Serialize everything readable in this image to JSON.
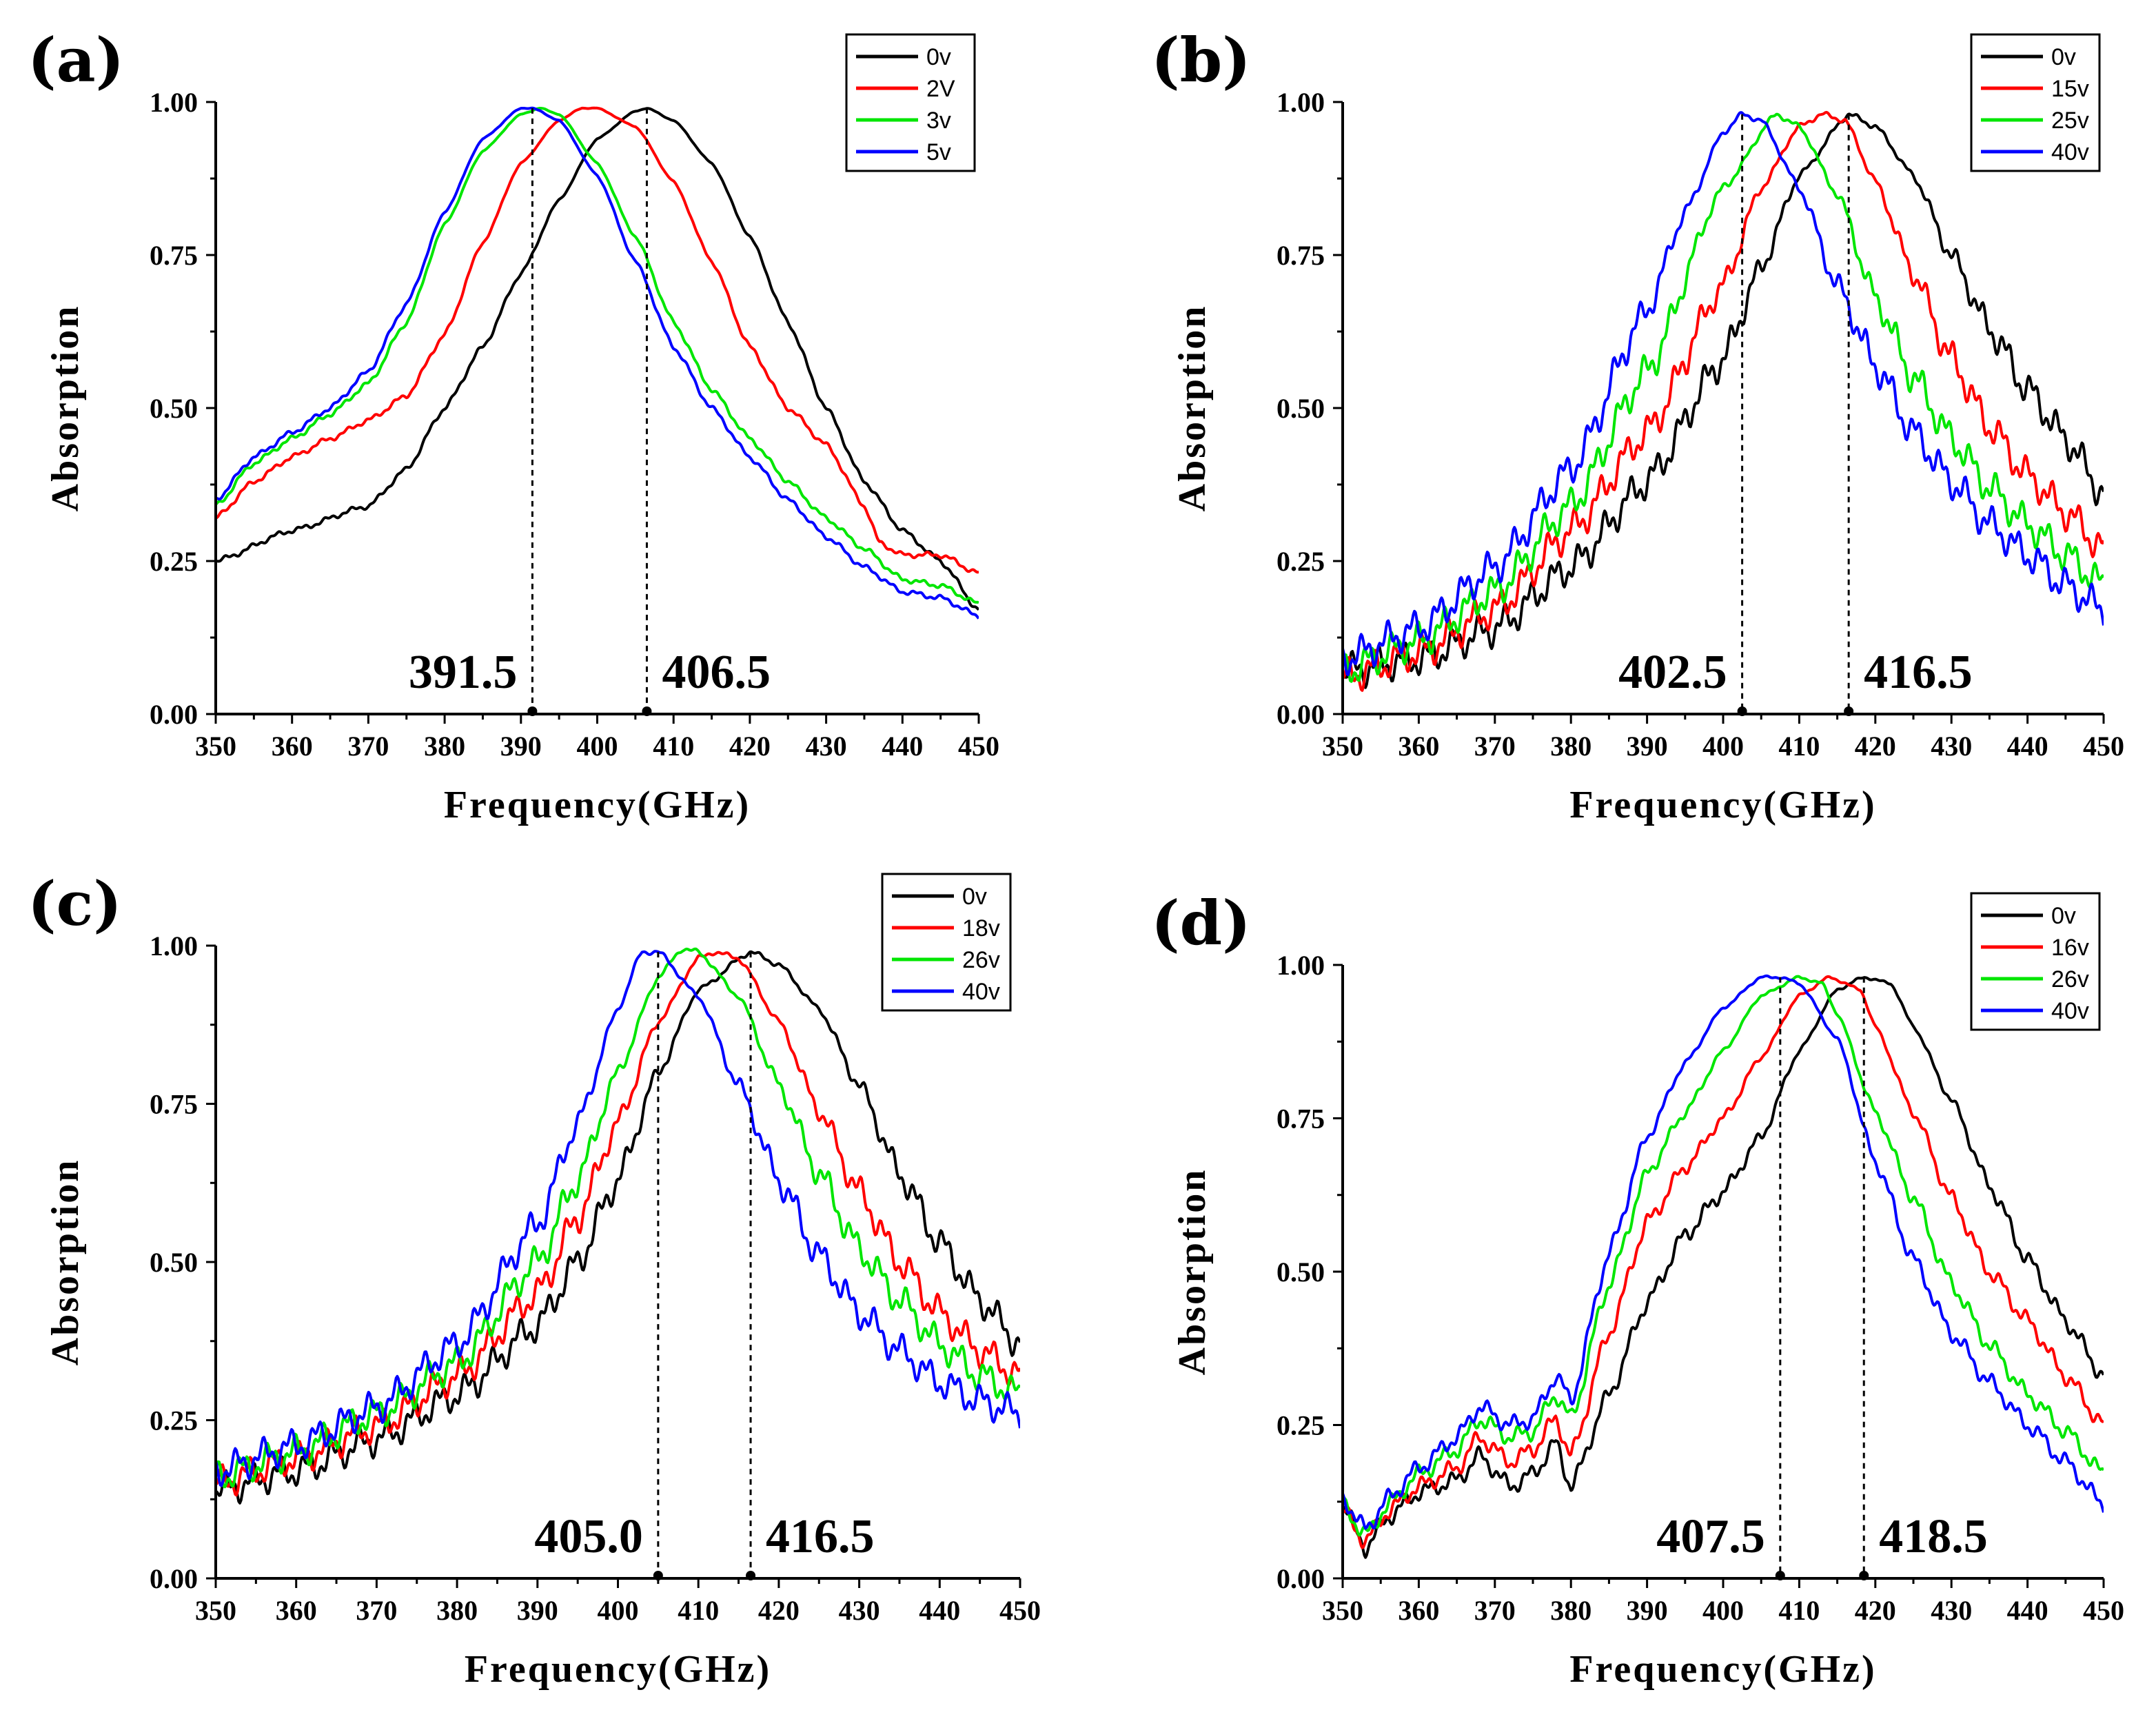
{
  "colors": {
    "series": [
      "#000000",
      "#ff0000",
      "#00e600",
      "#0000ff"
    ],
    "axis": "#000000"
  },
  "chart_data": [
    {
      "type": "line",
      "panel": "(a)",
      "xlabel": "Frequency(GHz)",
      "ylabel": "Absorption",
      "xlim": [
        350,
        450
      ],
      "ylim": [
        0,
        1
      ],
      "xticks": [
        "350",
        "360",
        "370",
        "380",
        "390",
        "400",
        "410",
        "420",
        "430",
        "440",
        "450"
      ],
      "yticks": [
        "0.00",
        "0.25",
        "0.50",
        "0.75",
        "1.00"
      ],
      "noise": 0.003,
      "series": [
        {
          "name": "0v",
          "x": [
            350,
            360,
            370,
            375,
            380,
            385,
            390,
            395,
            400,
            405,
            406.5,
            410,
            415,
            420,
            425,
            430,
            435,
            440,
            445,
            450
          ],
          "values": [
            0.25,
            0.3,
            0.34,
            0.4,
            0.5,
            0.6,
            0.72,
            0.84,
            0.94,
            0.985,
            0.99,
            0.97,
            0.9,
            0.78,
            0.64,
            0.5,
            0.38,
            0.3,
            0.25,
            0.17
          ]
        },
        {
          "name": "2V",
          "x": [
            350,
            355,
            360,
            365,
            370,
            375,
            380,
            385,
            390,
            395,
            398,
            400,
            405,
            410,
            415,
            420,
            425,
            430,
            435,
            437,
            440,
            445,
            450
          ],
          "values": [
            0.32,
            0.38,
            0.42,
            0.45,
            0.48,
            0.52,
            0.62,
            0.77,
            0.9,
            0.97,
            0.99,
            0.99,
            0.96,
            0.87,
            0.74,
            0.6,
            0.5,
            0.44,
            0.34,
            0.28,
            0.26,
            0.26,
            0.23
          ]
        },
        {
          "name": "3v",
          "x": [
            350,
            355,
            360,
            365,
            370,
            375,
            380,
            385,
            390,
            392.5,
            395,
            400,
            405,
            410,
            415,
            420,
            425,
            430,
            435,
            440,
            445,
            450
          ],
          "values": [
            0.34,
            0.41,
            0.45,
            0.49,
            0.54,
            0.64,
            0.8,
            0.92,
            0.98,
            0.99,
            0.98,
            0.9,
            0.78,
            0.64,
            0.53,
            0.45,
            0.38,
            0.32,
            0.27,
            0.22,
            0.21,
            0.18
          ]
        },
        {
          "name": "5v",
          "x": [
            350,
            355,
            360,
            365,
            370,
            375,
            380,
            385,
            390,
            391.5,
            395,
            400,
            405,
            410,
            415,
            420,
            425,
            430,
            435,
            440,
            445,
            450
          ],
          "values": [
            0.35,
            0.42,
            0.46,
            0.5,
            0.56,
            0.67,
            0.82,
            0.94,
            0.99,
            0.99,
            0.97,
            0.88,
            0.74,
            0.6,
            0.5,
            0.42,
            0.35,
            0.29,
            0.24,
            0.2,
            0.19,
            0.16
          ]
        }
      ],
      "markers": [
        {
          "label": "391.5",
          "x": 391.5,
          "y": 0.99,
          "side": "left"
        },
        {
          "label": "406.5",
          "x": 406.5,
          "y": 0.99,
          "side": "right"
        }
      ]
    },
    {
      "type": "line",
      "panel": "(b)",
      "xlabel": "Frequency(GHz)",
      "ylabel": "Absorption",
      "xlim": [
        350,
        450
      ],
      "ylim": [
        0,
        1
      ],
      "xticks": [
        "350",
        "360",
        "370",
        "380",
        "390",
        "400",
        "410",
        "420",
        "430",
        "440",
        "450"
      ],
      "yticks": [
        "0.00",
        "0.25",
        "0.50",
        "0.75",
        "1.00"
      ],
      "noise": 0.02,
      "series": [
        {
          "name": "0v",
          "x": [
            350,
            360,
            370,
            380,
            390,
            400,
            405,
            410,
            416.5,
            420,
            425,
            430,
            435,
            440,
            445,
            450
          ],
          "values": [
            0.07,
            0.09,
            0.14,
            0.24,
            0.38,
            0.58,
            0.73,
            0.88,
            0.98,
            0.96,
            0.88,
            0.75,
            0.63,
            0.53,
            0.45,
            0.36
          ]
        },
        {
          "name": "15v",
          "x": [
            350,
            360,
            370,
            380,
            390,
            400,
            405,
            410,
            413,
            416,
            420,
            425,
            430,
            435,
            440,
            445,
            450
          ],
          "values": [
            0.06,
            0.1,
            0.17,
            0.3,
            0.46,
            0.7,
            0.86,
            0.96,
            0.98,
            0.97,
            0.87,
            0.72,
            0.58,
            0.47,
            0.39,
            0.33,
            0.27
          ]
        },
        {
          "name": "25v",
          "x": [
            350,
            360,
            370,
            380,
            390,
            400,
            407,
            410,
            415,
            420,
            425,
            430,
            435,
            440,
            445,
            450
          ],
          "values": [
            0.07,
            0.12,
            0.2,
            0.34,
            0.56,
            0.86,
            0.98,
            0.96,
            0.85,
            0.68,
            0.55,
            0.45,
            0.37,
            0.31,
            0.26,
            0.21
          ]
        },
        {
          "name": "40v",
          "x": [
            350,
            360,
            370,
            380,
            390,
            395,
            400,
            402.5,
            405,
            410,
            415,
            420,
            425,
            430,
            435,
            440,
            445,
            450
          ],
          "values": [
            0.09,
            0.14,
            0.24,
            0.4,
            0.66,
            0.82,
            0.95,
            0.98,
            0.97,
            0.86,
            0.7,
            0.57,
            0.46,
            0.38,
            0.31,
            0.26,
            0.21,
            0.17
          ]
        }
      ],
      "markers": [
        {
          "label": "402.5",
          "x": 402.5,
          "y": 0.98,
          "side": "left"
        },
        {
          "label": "416.5",
          "x": 416.5,
          "y": 0.98,
          "side": "right"
        }
      ]
    },
    {
      "type": "line",
      "panel": "(c)",
      "xlabel": "Frequency(GHz)",
      "ylabel": "Absorption",
      "xlim": [
        350,
        450
      ],
      "ylim": [
        0,
        1
      ],
      "xticks": [
        "350",
        "360",
        "370",
        "380",
        "390",
        "400",
        "410",
        "420",
        "430",
        "440",
        "450"
      ],
      "yticks": [
        "0.00",
        "0.25",
        "0.50",
        "0.75",
        "1.00"
      ],
      "noise": 0.018,
      "series": [
        {
          "name": "0v",
          "x": [
            350,
            360,
            370,
            380,
            390,
            395,
            400,
            405,
            410,
            416.5,
            420,
            425,
            430,
            435,
            440,
            445,
            450
          ],
          "values": [
            0.14,
            0.17,
            0.22,
            0.29,
            0.4,
            0.5,
            0.63,
            0.8,
            0.93,
            0.99,
            0.97,
            0.9,
            0.78,
            0.64,
            0.53,
            0.44,
            0.37
          ]
        },
        {
          "name": "18v",
          "x": [
            350,
            360,
            370,
            380,
            390,
            395,
            400,
            405,
            410,
            412,
            415,
            420,
            425,
            430,
            435,
            440,
            445,
            450
          ],
          "values": [
            0.15,
            0.19,
            0.24,
            0.32,
            0.45,
            0.57,
            0.72,
            0.88,
            0.98,
            0.99,
            0.98,
            0.88,
            0.74,
            0.61,
            0.5,
            0.42,
            0.36,
            0.32
          ]
        },
        {
          "name": "26v",
          "x": [
            350,
            360,
            370,
            380,
            390,
            395,
            400,
            405,
            408,
            410,
            415,
            420,
            425,
            430,
            435,
            440,
            445,
            450
          ],
          "values": [
            0.16,
            0.2,
            0.26,
            0.34,
            0.5,
            0.63,
            0.8,
            0.95,
            0.995,
            0.99,
            0.92,
            0.78,
            0.64,
            0.52,
            0.44,
            0.37,
            0.32,
            0.29
          ]
        },
        {
          "name": "40v",
          "x": [
            350,
            360,
            370,
            380,
            390,
            395,
            400,
            403,
            405,
            410,
            415,
            420,
            425,
            430,
            435,
            440,
            445,
            450
          ],
          "values": [
            0.17,
            0.21,
            0.27,
            0.37,
            0.56,
            0.72,
            0.9,
            0.99,
            0.99,
            0.92,
            0.78,
            0.63,
            0.51,
            0.42,
            0.36,
            0.31,
            0.28,
            0.26
          ]
        }
      ],
      "markers": [
        {
          "label": "405.0",
          "x": 405.0,
          "y": 0.99,
          "side": "left"
        },
        {
          "label": "416.5",
          "x": 416.5,
          "y": 0.99,
          "side": "right"
        }
      ]
    },
    {
      "type": "line",
      "panel": "(d)",
      "xlabel": "Frequency(GHz)",
      "ylabel": "Absorption",
      "xlim": [
        350,
        450
      ],
      "ylim": [
        0,
        1
      ],
      "xticks": [
        "350",
        "360",
        "370",
        "380",
        "390",
        "400",
        "410",
        "420",
        "430",
        "440",
        "450"
      ],
      "yticks": [
        "0.00",
        "0.25",
        "0.50",
        "0.75",
        "1.00"
      ],
      "noise": 0.01,
      "series": [
        {
          "name": "0v",
          "x": [
            350,
            353,
            356,
            360,
            365,
            368,
            372,
            375,
            378,
            380,
            385,
            390,
            395,
            400,
            405,
            410,
            415,
            418.5,
            422,
            425,
            430,
            435,
            440,
            445,
            450
          ],
          "values": [
            0.12,
            0.05,
            0.1,
            0.14,
            0.16,
            0.2,
            0.15,
            0.17,
            0.22,
            0.15,
            0.3,
            0.45,
            0.56,
            0.63,
            0.72,
            0.86,
            0.96,
            0.98,
            0.97,
            0.9,
            0.78,
            0.64,
            0.52,
            0.42,
            0.33
          ]
        },
        {
          "name": "16v",
          "x": [
            350,
            353,
            356,
            360,
            365,
            368,
            372,
            375,
            378,
            380,
            385,
            390,
            395,
            400,
            405,
            410,
            414,
            418,
            420,
            425,
            430,
            435,
            440,
            445,
            450
          ],
          "values": [
            0.11,
            0.06,
            0.11,
            0.15,
            0.18,
            0.23,
            0.19,
            0.21,
            0.26,
            0.2,
            0.4,
            0.58,
            0.67,
            0.75,
            0.85,
            0.95,
            0.98,
            0.96,
            0.9,
            0.76,
            0.62,
            0.5,
            0.42,
            0.33,
            0.25
          ]
        },
        {
          "name": "26v",
          "x": [
            350,
            353,
            356,
            360,
            365,
            368,
            372,
            375,
            378,
            380,
            385,
            390,
            395,
            400,
            405,
            410,
            413,
            415,
            420,
            425,
            430,
            435,
            440,
            445,
            450
          ],
          "values": [
            0.12,
            0.07,
            0.12,
            0.17,
            0.21,
            0.26,
            0.23,
            0.24,
            0.3,
            0.26,
            0.48,
            0.66,
            0.76,
            0.86,
            0.95,
            0.98,
            0.97,
            0.92,
            0.76,
            0.62,
            0.48,
            0.38,
            0.3,
            0.24,
            0.17
          ]
        },
        {
          "name": "40v",
          "x": [
            350,
            353,
            356,
            360,
            365,
            368,
            372,
            375,
            378,
            380,
            385,
            390,
            395,
            400,
            405,
            407.5,
            410,
            415,
            420,
            425,
            430,
            435,
            440,
            445,
            450
          ],
          "values": [
            0.13,
            0.08,
            0.13,
            0.18,
            0.23,
            0.28,
            0.25,
            0.26,
            0.33,
            0.29,
            0.53,
            0.72,
            0.84,
            0.93,
            0.98,
            0.98,
            0.97,
            0.88,
            0.68,
            0.52,
            0.4,
            0.32,
            0.25,
            0.19,
            0.12
          ]
        }
      ],
      "markers": [
        {
          "label": "407.5",
          "x": 407.5,
          "y": 0.98,
          "side": "left"
        },
        {
          "label": "418.5",
          "x": 418.5,
          "y": 0.98,
          "side": "right"
        }
      ]
    }
  ]
}
